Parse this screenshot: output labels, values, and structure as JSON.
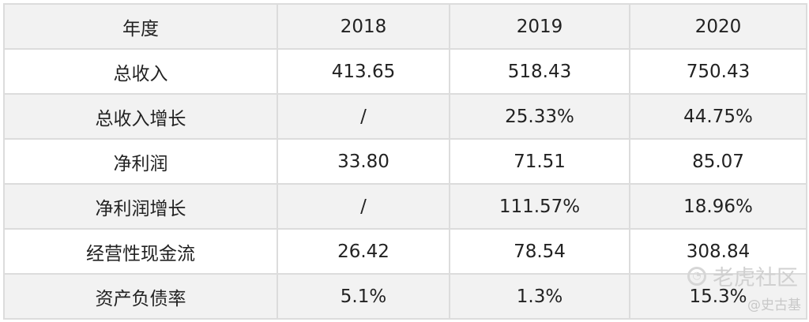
{
  "table": {
    "header": [
      "年度",
      "2018",
      "2019",
      "2020"
    ],
    "rows": [
      [
        "总收入",
        "413.65",
        "518.43",
        "750.43"
      ],
      [
        "总收入增长",
        "/",
        "25.33%",
        "44.75%"
      ],
      [
        "净利润",
        "33.80",
        "71.51",
        "85.07"
      ],
      [
        "净利润增长",
        "/",
        "111.57%",
        "18.96%"
      ],
      [
        "经营性现金流",
        "26.42",
        "78.54",
        "308.84"
      ],
      [
        "资产负债率",
        "5.1%",
        "1.3%",
        "15.3%"
      ]
    ]
  },
  "watermark": {
    "site": "老虎社区",
    "author": "@史古基"
  },
  "colors": {
    "header_bg": "#f2f2f2",
    "alt_row_bg": "#f2f2f2",
    "row_bg": "#ffffff",
    "border": "#dcdcdc",
    "text": "#222222",
    "watermark": "#d0d0d0"
  }
}
